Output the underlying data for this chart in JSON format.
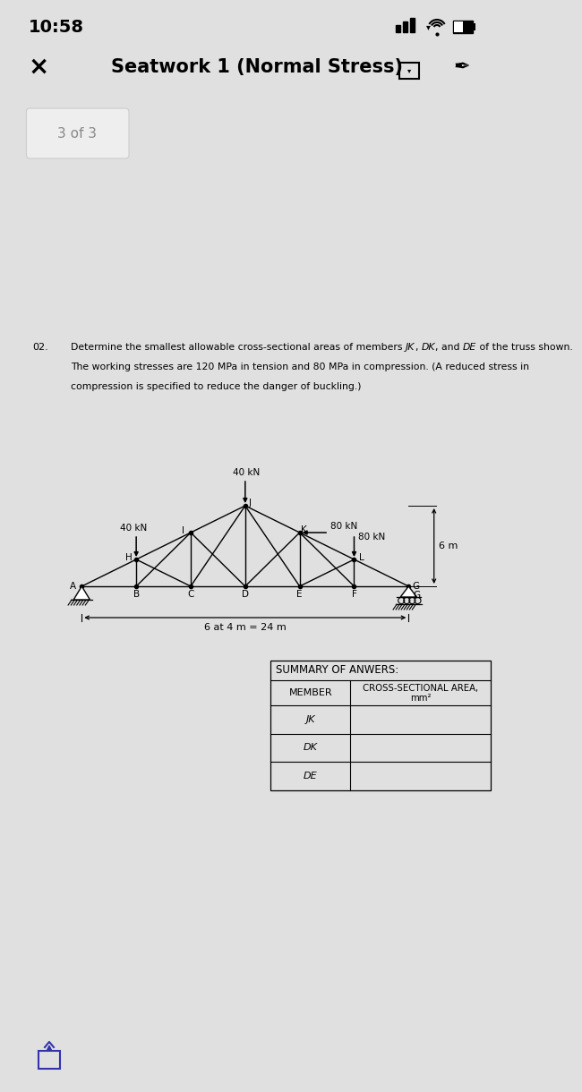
{
  "time": "10:58",
  "title": "Seatwork 1 (Normal Stress)",
  "page_label": "3 of 3",
  "problem_number": "02.",
  "problem_line1": "Determine the smallest allowable cross-sectional areas of members JK, DK, and DE of the truss shown.",
  "problem_line2": "The working stresses are 120 MPa in tension and 80 MPa in compression. (A reduced stress in",
  "problem_line3": "compression is specified to reduce the danger of buckling.)",
  "dim_label": "6 at 4 m = 24 m",
  "height_label": "6 m",
  "summary_title": "SUMMARY OF ANWERS:",
  "col1_header": "MEMBER",
  "col2_header_line1": "CROSS-SECTIONAL AREA,",
  "col2_header_line2": "mm²",
  "members": [
    "JK",
    "DK",
    "DE"
  ],
  "load1_label": "40 kN",
  "load2_label": "80 kN",
  "load3_label": "40 kN",
  "load4_label": "80 kN",
  "bg_outer": "#e0e0e0",
  "bg_white": "#ffffff",
  "bg_page_tag": "#ececec",
  "color_black": "#000000",
  "color_gray_tag": "#888888",
  "color_sep": "#bbbbbb",
  "color_bottom_bar": "#000000"
}
